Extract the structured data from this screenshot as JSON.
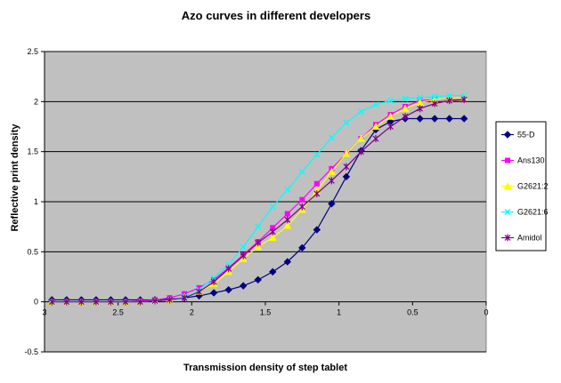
{
  "chart_data": {
    "type": "line",
    "title": "Azo curves in different developers",
    "xlabel": "Transmission density of step tablet",
    "ylabel": "Reflective print density",
    "xlim": [
      3,
      0
    ],
    "ylim": [
      -0.5,
      2.5
    ],
    "x_reversed": true,
    "x_ticks": [
      "3",
      "2.5",
      "2",
      "1.5",
      "1",
      "0.5",
      "0"
    ],
    "y_ticks": [
      "2.5",
      "2",
      "1.5",
      "1",
      "0.5",
      "0",
      "-0.5"
    ],
    "grid": "horizontal",
    "legend_position": "right",
    "plot_background": "#c0c0c0",
    "x": [
      2.95,
      2.85,
      2.75,
      2.65,
      2.55,
      2.45,
      2.35,
      2.25,
      2.15,
      2.05,
      1.95,
      1.85,
      1.75,
      1.65,
      1.55,
      1.45,
      1.35,
      1.25,
      1.15,
      1.05,
      0.95,
      0.85,
      0.75,
      0.65,
      0.55,
      0.45,
      0.35,
      0.25,
      0.15
    ],
    "series": [
      {
        "name": "55-D",
        "color": "#000080",
        "marker": "diamond",
        "values": [
          0.02,
          0.02,
          0.02,
          0.02,
          0.02,
          0.02,
          0.02,
          0.02,
          0.03,
          0.04,
          0.06,
          0.09,
          0.12,
          0.16,
          0.22,
          0.3,
          0.4,
          0.54,
          0.72,
          0.98,
          1.25,
          1.51,
          1.72,
          1.8,
          1.83,
          1.83,
          1.83,
          1.83,
          1.83
        ]
      },
      {
        "name": "Ans130",
        "color": "#ff00ff",
        "marker": "square",
        "values": [
          0.0,
          0.0,
          0.0,
          0.0,
          0.0,
          0.0,
          0.01,
          0.02,
          0.04,
          0.08,
          0.14,
          0.22,
          0.34,
          0.47,
          0.6,
          0.74,
          0.88,
          1.02,
          1.18,
          1.33,
          1.48,
          1.63,
          1.77,
          1.87,
          1.95,
          2.01,
          2.02,
          2.02,
          2.02
        ]
      },
      {
        "name": "G2621:2",
        "color": "#ffff00",
        "marker": "triangle",
        "values": [
          0.0,
          0.0,
          0.0,
          0.0,
          0.0,
          0.0,
          0.0,
          0.01,
          0.02,
          0.05,
          0.1,
          0.18,
          0.3,
          0.43,
          0.55,
          0.64,
          0.76,
          0.92,
          1.11,
          1.3,
          1.48,
          1.63,
          1.75,
          1.85,
          1.93,
          1.99,
          2.02,
          2.03,
          2.04
        ]
      },
      {
        "name": "G2621:6",
        "color": "#00ffff",
        "marker": "x",
        "values": [
          0.0,
          0.0,
          0.0,
          0.0,
          0.0,
          0.0,
          0.0,
          0.01,
          0.02,
          0.05,
          0.12,
          0.24,
          0.37,
          0.55,
          0.75,
          0.95,
          1.12,
          1.3,
          1.47,
          1.64,
          1.79,
          1.9,
          1.97,
          2.01,
          2.03,
          2.04,
          2.05,
          2.06,
          2.06
        ]
      },
      {
        "name": "Amidol",
        "color": "#800080",
        "marker": "star",
        "values": [
          0.0,
          0.0,
          0.0,
          0.0,
          0.0,
          0.0,
          0.0,
          0.01,
          0.02,
          0.04,
          0.1,
          0.2,
          0.33,
          0.46,
          0.59,
          0.7,
          0.82,
          0.95,
          1.08,
          1.21,
          1.35,
          1.5,
          1.63,
          1.75,
          1.85,
          1.93,
          1.98,
          2.01,
          2.02
        ]
      }
    ]
  }
}
